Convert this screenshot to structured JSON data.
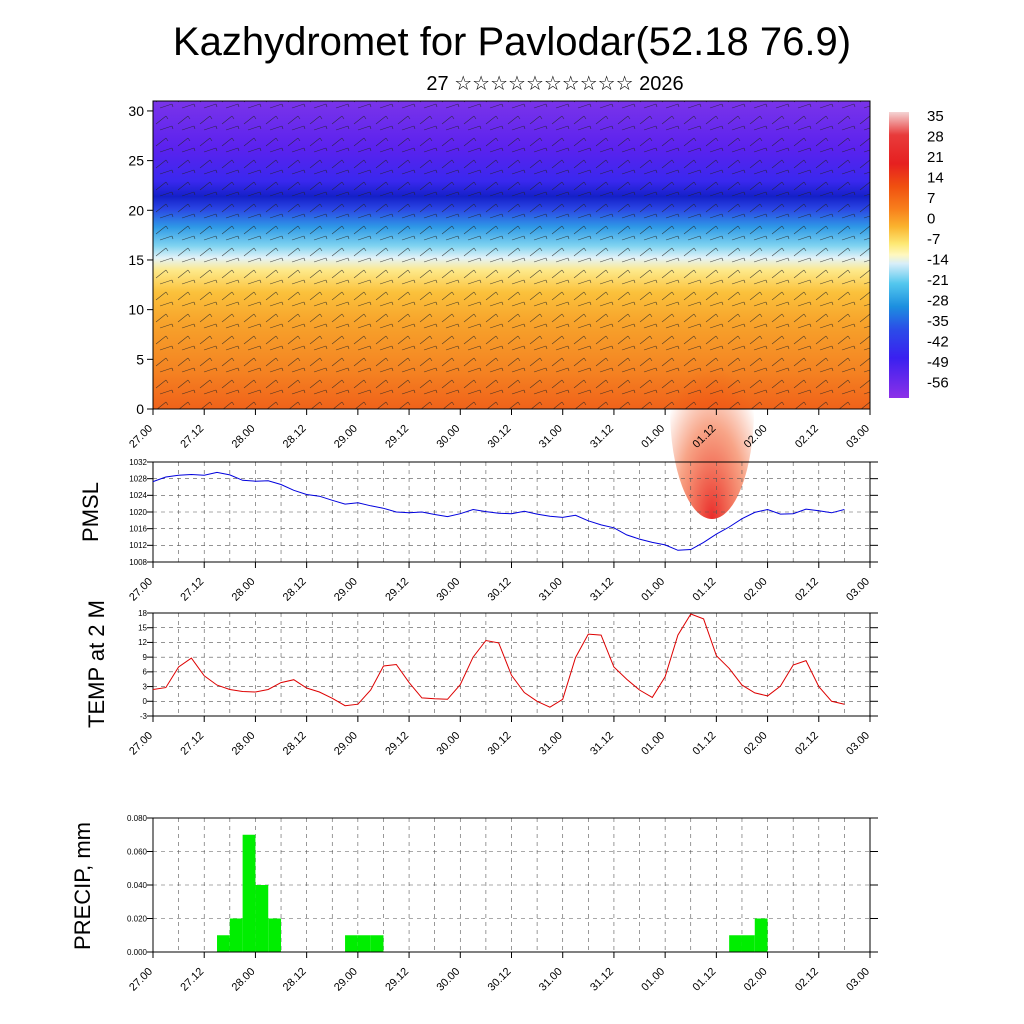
{
  "title": "Kazhydromet for Pavlodar(52.18 76.9)",
  "subtitle": "27 ☆☆☆☆☆☆☆☆☆☆ 2026",
  "time_ticks": [
    "27.00",
    "27.12",
    "28.00",
    "28.12",
    "29.00",
    "29.12",
    "30.00",
    "30.12",
    "31.00",
    "31.12",
    "01.00",
    "01.12",
    "02.00",
    "02.12",
    "03.00"
  ],
  "colors": {
    "pmsl_line": "#0000dd",
    "temp_line": "#dd0000",
    "precip_bar": "#00ee00",
    "grid": "#555555"
  },
  "chart_data": [
    {
      "type": "heatmap",
      "name": "cross-section",
      "ylim": [
        0,
        31
      ],
      "yticks": [
        0,
        5,
        10,
        15,
        20,
        25,
        30
      ],
      "x_ticks_ref": "time_ticks",
      "colorbar": {
        "labels": [
          "35",
          "28",
          "21",
          "14",
          "7",
          "0",
          "-7",
          "-14",
          "-21",
          "-28",
          "-35",
          "-42",
          "-49",
          "-56"
        ],
        "stops": [
          "#f2c8c8",
          "#e83030",
          "#e82020",
          "#f04a10",
          "#f7781a",
          "#fbb030",
          "#fff6a0",
          "#d6eef8",
          "#54c8ee",
          "#1b8fdf",
          "#2a48e8",
          "#3a1ef0",
          "#5a1ef0",
          "#8a2ee8"
        ]
      }
    },
    {
      "type": "line",
      "name": "pmsl",
      "ylabel": "PMSL",
      "ylim": [
        1008,
        1032
      ],
      "yticks": [
        1008,
        1012,
        1016,
        1020,
        1024,
        1028,
        1032
      ],
      "x": [
        0,
        3,
        6,
        9,
        12,
        15,
        18,
        21,
        24,
        27,
        30,
        33,
        36,
        39,
        42,
        45,
        48,
        51,
        54,
        57,
        60,
        63,
        66,
        69,
        72,
        75,
        78,
        81,
        84,
        87,
        90,
        93,
        96,
        99,
        102,
        105,
        108,
        111,
        114,
        117,
        120,
        123,
        126,
        129,
        132,
        135,
        138,
        141,
        144,
        147,
        150,
        153,
        156,
        159,
        162
      ],
      "values": [
        1027.3,
        1028.4,
        1028.8,
        1029.0,
        1028.8,
        1029.5,
        1028.9,
        1027.6,
        1027.4,
        1027.5,
        1026.6,
        1025.2,
        1024.2,
        1023.8,
        1022.8,
        1021.9,
        1022.2,
        1021.5,
        1020.9,
        1020.0,
        1019.8,
        1020.0,
        1019.4,
        1018.9,
        1019.6,
        1020.6,
        1020.1,
        1019.7,
        1019.6,
        1020.2,
        1019.5,
        1019.0,
        1018.7,
        1019.2,
        1017.9,
        1016.9,
        1016.2,
        1014.5,
        1013.5,
        1012.7,
        1012.1,
        1010.8,
        1011.0,
        1012.7,
        1014.7,
        1016.4,
        1018.4,
        1019.9,
        1020.6,
        1019.5,
        1019.6,
        1020.7,
        1020.3,
        1019.8,
        1020.6
      ],
      "series_color": "#0000dd"
    },
    {
      "type": "line",
      "name": "temp",
      "ylabel": "TEMP at 2 M",
      "ylim": [
        -3,
        18
      ],
      "yticks": [
        -3,
        0,
        3,
        6,
        9,
        12,
        15,
        18
      ],
      "x": [
        0,
        3,
        6,
        9,
        12,
        15,
        18,
        21,
        24,
        27,
        30,
        33,
        36,
        39,
        42,
        45,
        48,
        51,
        54,
        57,
        60,
        63,
        66,
        69,
        72,
        75,
        78,
        81,
        84,
        87,
        90,
        93,
        96,
        99,
        102,
        105,
        108,
        111,
        114,
        117,
        120,
        123,
        126,
        129,
        132,
        135,
        138,
        141,
        144,
        147,
        150,
        153,
        156,
        159,
        162
      ],
      "values": [
        2.4,
        2.8,
        7.0,
        8.8,
        5.2,
        3.3,
        2.4,
        2.0,
        1.9,
        2.4,
        3.8,
        4.4,
        2.7,
        1.9,
        0.6,
        -0.9,
        -0.6,
        2.3,
        7.2,
        7.5,
        3.8,
        0.7,
        0.5,
        0.4,
        3.4,
        9.0,
        12.4,
        11.9,
        5.3,
        1.8,
        0.0,
        -1.2,
        0.4,
        8.9,
        13.7,
        13.5,
        7.0,
        4.5,
        2.3,
        0.8,
        5.0,
        13.5,
        17.8,
        16.8,
        9.3,
        6.7,
        3.3,
        1.7,
        1.1,
        3.1,
        7.4,
        8.3,
        3.0,
        0.0,
        -0.6
      ],
      "series_color": "#dd0000"
    },
    {
      "type": "bar",
      "name": "precip",
      "ylabel": "PRECIP, mm",
      "ylim": [
        0,
        0.08
      ],
      "yticks": [
        "0.000",
        "0.020",
        "0.040",
        "0.060",
        "0.080"
      ],
      "bins_start": [
        15,
        18,
        21,
        24,
        27,
        45,
        48,
        51,
        135,
        138,
        141
      ],
      "bin_width": 3,
      "values": [
        0.01,
        0.02,
        0.07,
        0.04,
        0.02,
        0.01,
        0.01,
        0.01,
        0.01,
        0.01,
        0.02
      ],
      "series_color": "#00ee00"
    }
  ]
}
